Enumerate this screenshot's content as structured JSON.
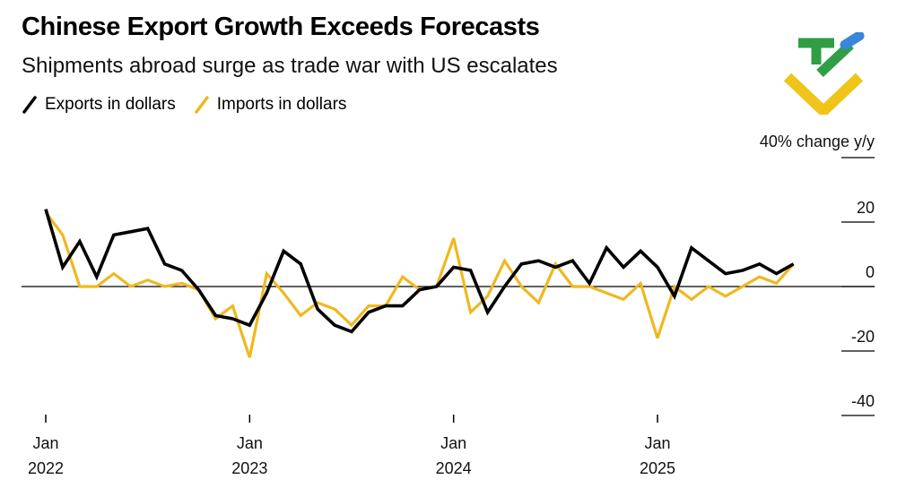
{
  "header": {
    "title": "Chinese Export Growth Exceeds Forecasts",
    "subtitle": "Shipments abroad surge as trade war with US escalates"
  },
  "legend": {
    "exports_label": "Exports in dollars",
    "imports_label": "Imports in dollars"
  },
  "logo": {
    "name": "brand-logo",
    "colors": [
      "#2f9e44",
      "#3a86d8",
      "#f0c419"
    ]
  },
  "chart_data": {
    "type": "line",
    "title": "Chinese Export Growth Exceeds Forecasts",
    "subtitle": "Shipments abroad surge as trade war with US escalates",
    "ylabel": "% change y/y",
    "y_unit_label": "40% change y/y",
    "ylim": [
      -40,
      40
    ],
    "yticks": [
      40,
      20,
      0,
      -20,
      -40
    ],
    "ytick_labels": [
      "40",
      "20",
      "0",
      "-20",
      "-40"
    ],
    "xlim": [
      0,
      45
    ],
    "xticks": [
      {
        "x": 0,
        "month": "Jan",
        "year": "2022"
      },
      {
        "x": 12,
        "month": "Jan",
        "year": "2023"
      },
      {
        "x": 24,
        "month": "Jan",
        "year": "2024"
      },
      {
        "x": 36,
        "month": "Jan",
        "year": "2025"
      }
    ],
    "legend_position": "top-left",
    "series": [
      {
        "name": "Exports in dollars",
        "color": "#000000",
        "x": [
          0,
          1,
          2,
          3,
          4,
          5,
          6,
          7,
          8,
          9,
          10,
          11,
          12,
          13,
          14,
          15,
          16,
          17,
          18,
          19,
          20,
          21,
          22,
          23,
          24,
          25,
          26,
          27,
          28,
          29,
          30,
          31,
          32,
          33,
          34,
          35,
          36,
          37,
          38,
          39,
          40,
          41,
          42,
          43,
          44,
          45
        ],
        "values": [
          24,
          6,
          14,
          3,
          16,
          17,
          18,
          7,
          5,
          -1,
          -9,
          -10,
          -12,
          -2,
          11,
          7,
          -7,
          -12,
          -14,
          -8,
          -6,
          -6,
          -1,
          0,
          6,
          5,
          -8,
          0,
          7,
          8,
          6,
          8,
          1,
          12,
          6,
          11,
          6,
          -3,
          12,
          8,
          4,
          5,
          7,
          4,
          7,
          null
        ]
      },
      {
        "name": "Imports in dollars",
        "color": "#f0b81f",
        "x": [
          0,
          1,
          2,
          3,
          4,
          5,
          6,
          7,
          8,
          9,
          10,
          11,
          12,
          13,
          14,
          15,
          16,
          17,
          18,
          19,
          20,
          21,
          22,
          23,
          24,
          25,
          26,
          27,
          28,
          29,
          30,
          31,
          32,
          33,
          34,
          35,
          36,
          37,
          38,
          39,
          40,
          41,
          42,
          43,
          44,
          45
        ],
        "values": [
          23,
          16,
          0,
          0,
          4,
          0,
          2,
          0,
          1,
          -1,
          -10,
          -6,
          -22,
          4,
          -2,
          -9,
          -5,
          -7,
          -12,
          -6,
          -6,
          3,
          -1,
          0,
          15,
          -8,
          -3,
          8,
          0,
          -5,
          7,
          0,
          0,
          -2,
          -4,
          1,
          -16,
          0,
          -4,
          0,
          -3,
          0,
          3,
          1,
          7,
          null
        ]
      }
    ]
  }
}
